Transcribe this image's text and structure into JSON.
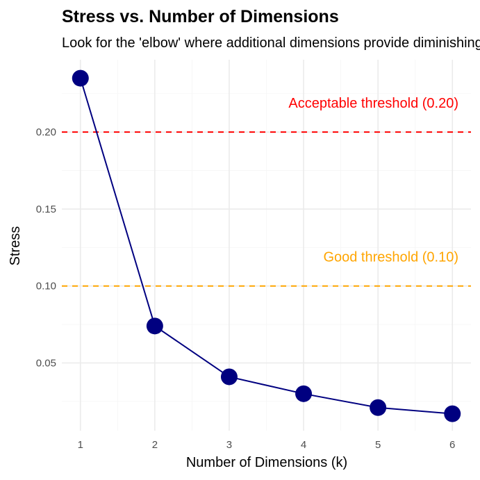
{
  "chart_data": {
    "type": "line",
    "title": "Stress vs. Number of Dimensions",
    "subtitle": "Look for the 'elbow' where additional dimensions provide diminishing returns",
    "xlabel": "Number of Dimensions (k)",
    "ylabel": "Stress",
    "x": [
      1,
      2,
      3,
      4,
      5,
      6
    ],
    "series": [
      {
        "values": [
          0.235,
          0.074,
          0.041,
          0.03,
          0.021,
          0.017
        ],
        "color": "#000080"
      }
    ],
    "xticks": [
      1,
      2,
      3,
      4,
      5,
      6
    ],
    "yticks": [
      0.05,
      0.1,
      0.15,
      0.2
    ],
    "ytick_labels": [
      "0.05",
      "0.10",
      "0.15",
      "0.20"
    ],
    "xlim": [
      0.75,
      6.25
    ],
    "ylim": [
      0.006,
      0.247
    ],
    "grid": true,
    "reference_lines": [
      {
        "y": 0.2,
        "label": "Acceptable threshold (0.20)",
        "color": "#ff0000",
        "label_y": 0.219
      },
      {
        "y": 0.1,
        "label": "Good threshold (0.10)",
        "color": "#ffa500",
        "label_y": 0.119
      }
    ]
  }
}
